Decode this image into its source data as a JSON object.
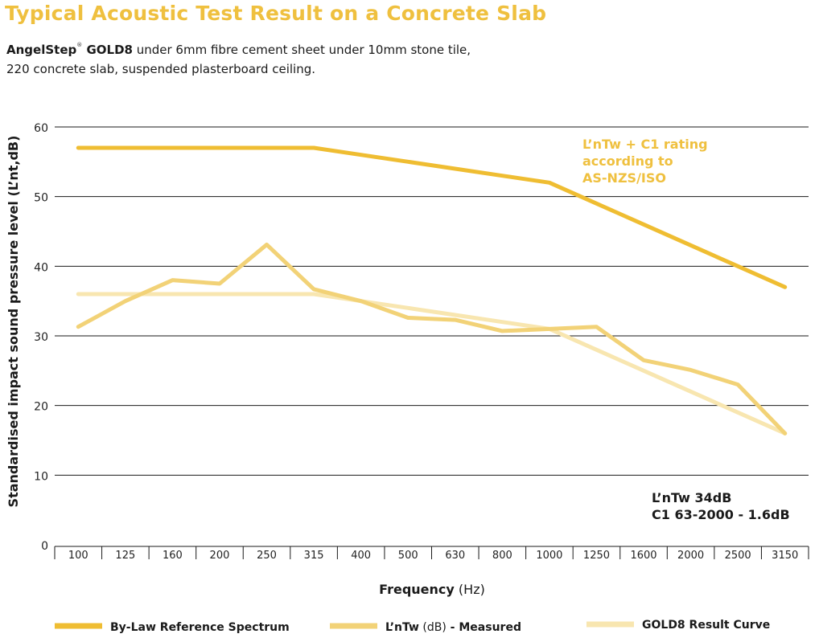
{
  "header": {
    "title": "Typical Acoustic Test Result on a Concrete Slab",
    "subtitle_brand": "AngelStep",
    "subtitle_mark": "®",
    "subtitle_brand2": " GOLD8",
    "subtitle_line1_rest": " under 6mm fibre cement sheet under 10mm stone tile,",
    "subtitle_line2": "220 concrete slab, suspended plasterboard ceiling."
  },
  "chart_data": {
    "type": "line",
    "title": "Typical Acoustic Test Result on a Concrete Slab",
    "xlabel_bold": "Frequency",
    "xlabel_unit": " (Hz)",
    "ylabel": "Standardised impact sound pressure level (L’nt,dB)",
    "ylim": [
      0,
      60
    ],
    "yticks": [
      0,
      10,
      20,
      30,
      40,
      50,
      60
    ],
    "grid": true,
    "legend_position": "bottom",
    "categories": [
      "100",
      "125",
      "160",
      "200",
      "250",
      "315",
      "400",
      "500",
      "630",
      "800",
      "1000",
      "1250",
      "1600",
      "2000",
      "2500",
      "3150"
    ],
    "series": [
      {
        "name": "By-Law Reference Spectrum",
        "color": "#efbd32",
        "values": [
          57,
          57,
          57,
          57,
          57,
          57,
          56,
          55,
          54,
          53,
          52,
          49,
          46,
          43,
          40,
          37
        ]
      },
      {
        "name": "L’nTw (dB) - Measured",
        "color": "#f2d277",
        "values": [
          31.3,
          35,
          38,
          37.5,
          43.1,
          36.7,
          35,
          32.6,
          32.3,
          30.7,
          31,
          31.3,
          26.5,
          25.1,
          23,
          16
        ]
      },
      {
        "name": "GOLD8 Result Curve",
        "color": "#f8e6b0",
        "values": [
          36,
          36,
          36,
          36,
          36,
          36,
          35,
          34,
          33,
          32,
          31,
          28,
          25,
          22,
          19,
          16
        ]
      }
    ],
    "annotations": {
      "rating_line1": "L’nTw + C1 rating",
      "rating_line2": "according to",
      "rating_line3": "AS-NZS/ISO",
      "result_line1": "L’nTw 34dB",
      "result_line2": "C1 63-2000 - 1.6dB"
    },
    "legend": {
      "item1": "By-Law Reference Spectrum",
      "item2_bold1": "L’nTw",
      "item2_normal": " (dB)",
      "item2_bold2": " - Measured",
      "item3": "GOLD8 Result Curve"
    }
  }
}
